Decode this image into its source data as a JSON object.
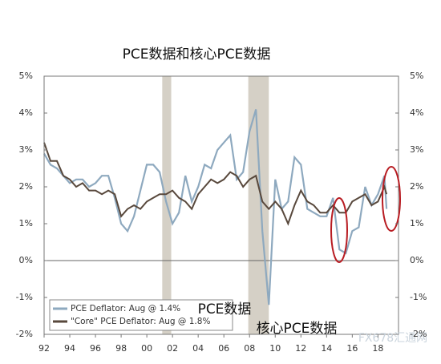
{
  "chart_data": {
    "type": "line",
    "title": "PCE数据和核心PCE数据",
    "x": [
      1992,
      1992.5,
      1993,
      1993.5,
      1994,
      1994.5,
      1995,
      1995.5,
      1996,
      1996.5,
      1997,
      1997.5,
      1998,
      1998.5,
      1999,
      1999.5,
      2000,
      2000.5,
      2001,
      2001.5,
      2002,
      2002.5,
      2003,
      2003.5,
      2004,
      2004.5,
      2005,
      2005.5,
      2006,
      2006.5,
      2007,
      2007.5,
      2008,
      2008.5,
      2009,
      2009.5,
      2010,
      2010.5,
      2011,
      2011.5,
      2012,
      2012.5,
      2013,
      2013.5,
      2014,
      2014.5,
      2015,
      2015.5,
      2016,
      2016.5,
      2017,
      2017.5,
      2018,
      2018.5,
      2018.67
    ],
    "series": [
      {
        "name": "PCE Deflator: Aug @ 1.4%",
        "color": "#8ea9bf",
        "values": [
          2.9,
          2.6,
          2.5,
          2.3,
          2.1,
          2.2,
          2.2,
          2.0,
          2.1,
          2.3,
          2.3,
          1.7,
          1.0,
          0.8,
          1.2,
          1.9,
          2.6,
          2.6,
          2.4,
          1.6,
          1.0,
          1.3,
          2.3,
          1.6,
          2.0,
          2.6,
          2.5,
          3.0,
          3.2,
          3.4,
          2.2,
          2.4,
          3.5,
          4.1,
          0.8,
          -1.2,
          2.2,
          1.4,
          1.6,
          2.8,
          2.6,
          1.4,
          1.3,
          1.2,
          1.2,
          1.7,
          0.3,
          0.2,
          0.8,
          0.9,
          2.0,
          1.5,
          1.8,
          2.3,
          1.4
        ]
      },
      {
        "name": "\"Core\" PCE Deflator: Aug @ 1.8%",
        "color": "#58483c",
        "values": [
          3.2,
          2.7,
          2.7,
          2.3,
          2.2,
          2.0,
          2.1,
          1.9,
          1.9,
          1.8,
          1.9,
          1.8,
          1.2,
          1.4,
          1.5,
          1.4,
          1.6,
          1.7,
          1.8,
          1.8,
          1.9,
          1.7,
          1.6,
          1.4,
          1.8,
          2.0,
          2.2,
          2.1,
          2.2,
          2.4,
          2.3,
          2.0,
          2.2,
          2.3,
          1.6,
          1.4,
          1.6,
          1.4,
          1.0,
          1.5,
          1.9,
          1.6,
          1.5,
          1.3,
          1.3,
          1.5,
          1.3,
          1.3,
          1.6,
          1.7,
          1.8,
          1.5,
          1.6,
          2.0,
          1.8
        ]
      }
    ],
    "shaded_periods": [
      [
        2001.2,
        2001.9
      ],
      [
        2007.9,
        2009.5
      ]
    ],
    "xlim": [
      1992,
      2019.6
    ],
    "xticks": [
      {
        "value": 1992,
        "label": "92"
      },
      {
        "value": 1994,
        "label": "94"
      },
      {
        "value": 1996,
        "label": "96"
      },
      {
        "value": 1998,
        "label": "98"
      },
      {
        "value": 2000,
        "label": "00"
      },
      {
        "value": 2002,
        "label": "02"
      },
      {
        "value": 2004,
        "label": "04"
      },
      {
        "value": 2006,
        "label": "06"
      },
      {
        "value": 2008,
        "label": "08"
      },
      {
        "value": 2010,
        "label": "10"
      },
      {
        "value": 2012,
        "label": "12"
      },
      {
        "value": 2014,
        "label": "14"
      },
      {
        "value": 2016,
        "label": "16"
      },
      {
        "value": 2018,
        "label": "18"
      }
    ],
    "ylim": [
      -2,
      5
    ],
    "yticks": [
      {
        "value": -2,
        "label": "-2%"
      },
      {
        "value": -1,
        "label": "-1%"
      },
      {
        "value": 0,
        "label": "0%"
      },
      {
        "value": 1,
        "label": "1%"
      },
      {
        "value": 2,
        "label": "2%"
      },
      {
        "value": 3,
        "label": "3%"
      },
      {
        "value": 4,
        "label": "4%"
      },
      {
        "value": 5,
        "label": "5%"
      }
    ],
    "y2lim": [
      -2,
      5
    ],
    "y2ticks": [
      {
        "value": -2,
        "label": "-2%"
      },
      {
        "value": -1,
        "label": "-1%"
      },
      {
        "value": 0,
        "label": "0%"
      },
      {
        "value": 1,
        "label": "1%"
      },
      {
        "value": 2,
        "label": "2%"
      },
      {
        "value": 3,
        "label": "3%"
      },
      {
        "value": 4,
        "label": "4%"
      },
      {
        "value": 5,
        "label": "5%"
      }
    ],
    "annotations": [
      "PCE数据",
      "核心PCE数据"
    ],
    "watermark": "FX678汇通网"
  }
}
